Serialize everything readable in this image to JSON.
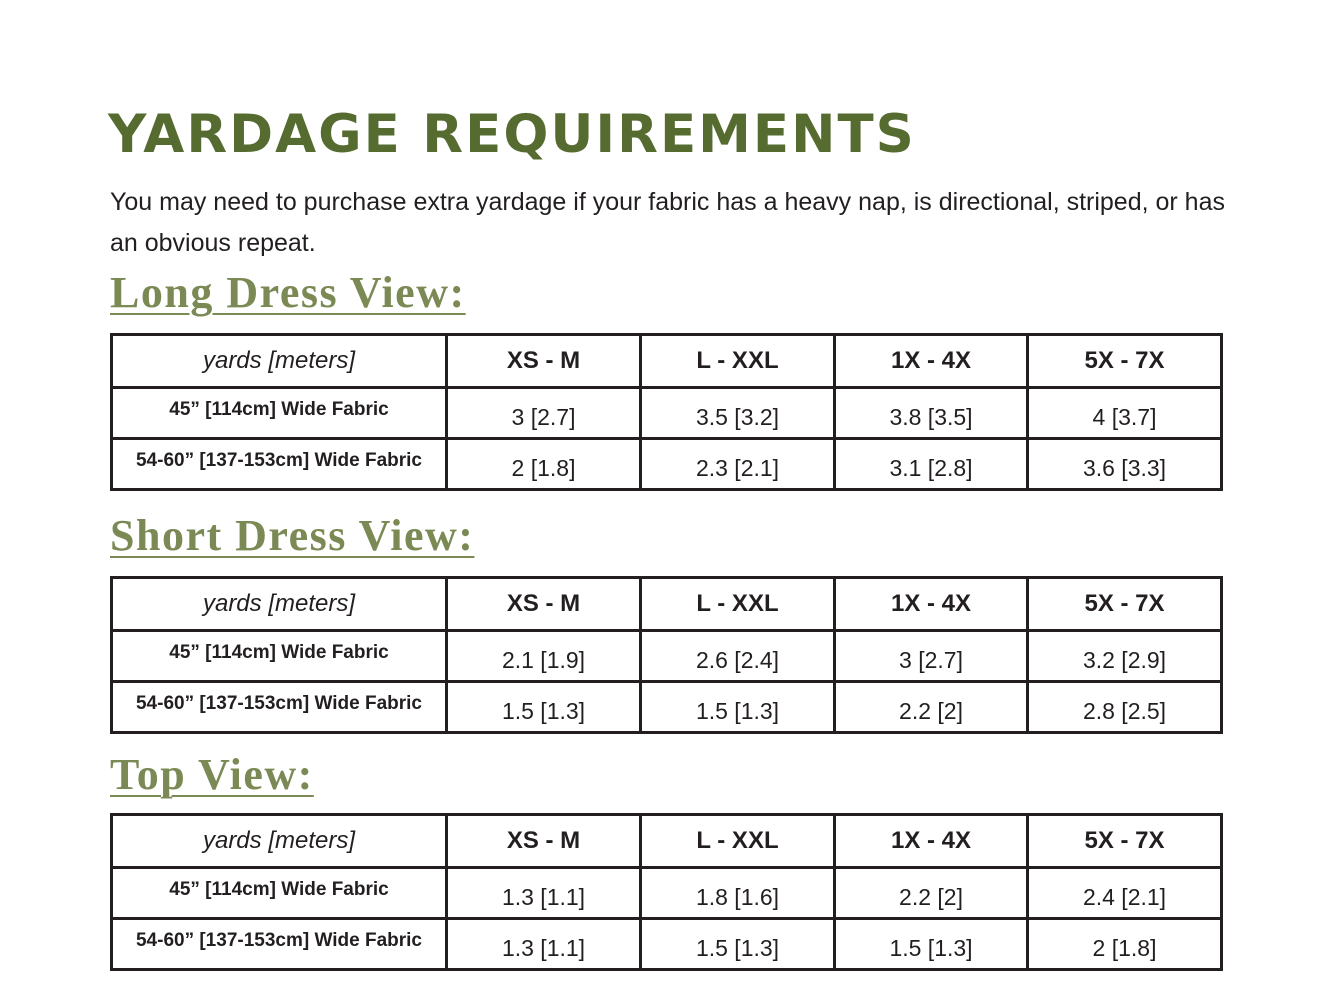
{
  "title": "YARDAGE REQUIREMENTS",
  "intro": "You may need to purchase extra yardage if your fabric has a heavy nap, is directional, striped, or has an obvious repeat.",
  "colors": {
    "title": "#566b30",
    "heading": "#7b8a55",
    "text": "#231f20"
  },
  "views": [
    {
      "heading": "Long Dress View:",
      "columns": [
        "yards [meters]",
        "XS - M",
        "L - XXL",
        "1X - 4X",
        "5X - 7X"
      ],
      "rows": [
        {
          "label": "45” [114cm] Wide Fabric",
          "values": [
            "3 [2.7]",
            "3.5 [3.2]",
            "3.8 [3.5]",
            "4 [3.7]"
          ]
        },
        {
          "label": "54-60” [137-153cm] Wide Fabric",
          "values": [
            "2 [1.8]",
            "2.3 [2.1]",
            "3.1 [2.8]",
            "3.6 [3.3]"
          ]
        }
      ]
    },
    {
      "heading": "Short Dress View:",
      "columns": [
        "yards [meters]",
        "XS - M",
        "L - XXL",
        "1X - 4X",
        "5X - 7X"
      ],
      "rows": [
        {
          "label": "45” [114cm] Wide Fabric",
          "values": [
            "2.1 [1.9]",
            "2.6 [2.4]",
            "3 [2.7]",
            "3.2 [2.9]"
          ]
        },
        {
          "label": "54-60” [137-153cm] Wide Fabric",
          "values": [
            "1.5 [1.3]",
            "1.5 [1.3]",
            "2.2 [2]",
            "2.8 [2.5]"
          ]
        }
      ]
    },
    {
      "heading": "Top View:",
      "columns": [
        "yards [meters]",
        "XS - M",
        "L - XXL",
        "1X - 4X",
        "5X - 7X"
      ],
      "rows": [
        {
          "label": "45” [114cm] Wide Fabric",
          "values": [
            "1.3 [1.1]",
            "1.8 [1.6]",
            "2.2 [2]",
            "2.4 [2.1]"
          ]
        },
        {
          "label": "54-60” [137-153cm] Wide Fabric",
          "values": [
            "1.3 [1.1]",
            "1.5 [1.3]",
            "1.5 [1.3]",
            "2 [1.8]"
          ]
        }
      ]
    }
  ]
}
